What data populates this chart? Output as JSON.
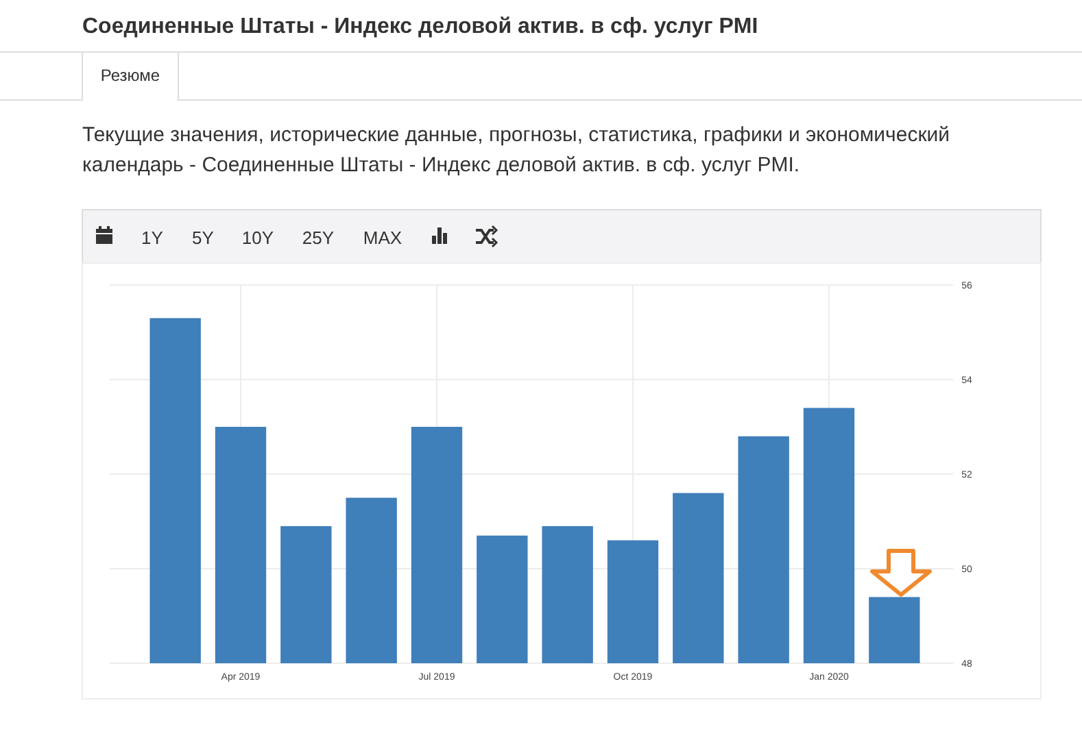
{
  "chart_data": {
    "type": "bar",
    "title": "Соединенные Штаты - Индекс деловой актив. в сф. услуг PMI",
    "subtitle": "Текущие значения, исторические данные, прогнозы, статистика, графики и экономический календарь - Соединенные Штаты - Индекс деловой актив. в сф. услуг PMI.",
    "annotations": [
      "Резюме",
      "1Y",
      "5Y",
      "10Y",
      "25Y",
      "MAX"
    ],
    "categories": [
      null,
      "Apr 2019",
      null,
      null,
      "Jul 2019",
      null,
      null,
      "Oct 2019",
      null,
      null,
      "Jan 2020",
      null
    ],
    "values": [
      55.3,
      53.0,
      50.9,
      51.5,
      53.0,
      50.7,
      50.9,
      50.6,
      51.6,
      52.8,
      53.4,
      49.4
    ],
    "color": "#3f7fba",
    "ylim": [
      48,
      56
    ],
    "yticks": [
      48,
      50,
      52,
      54,
      56
    ],
    "grid": true
  }
}
